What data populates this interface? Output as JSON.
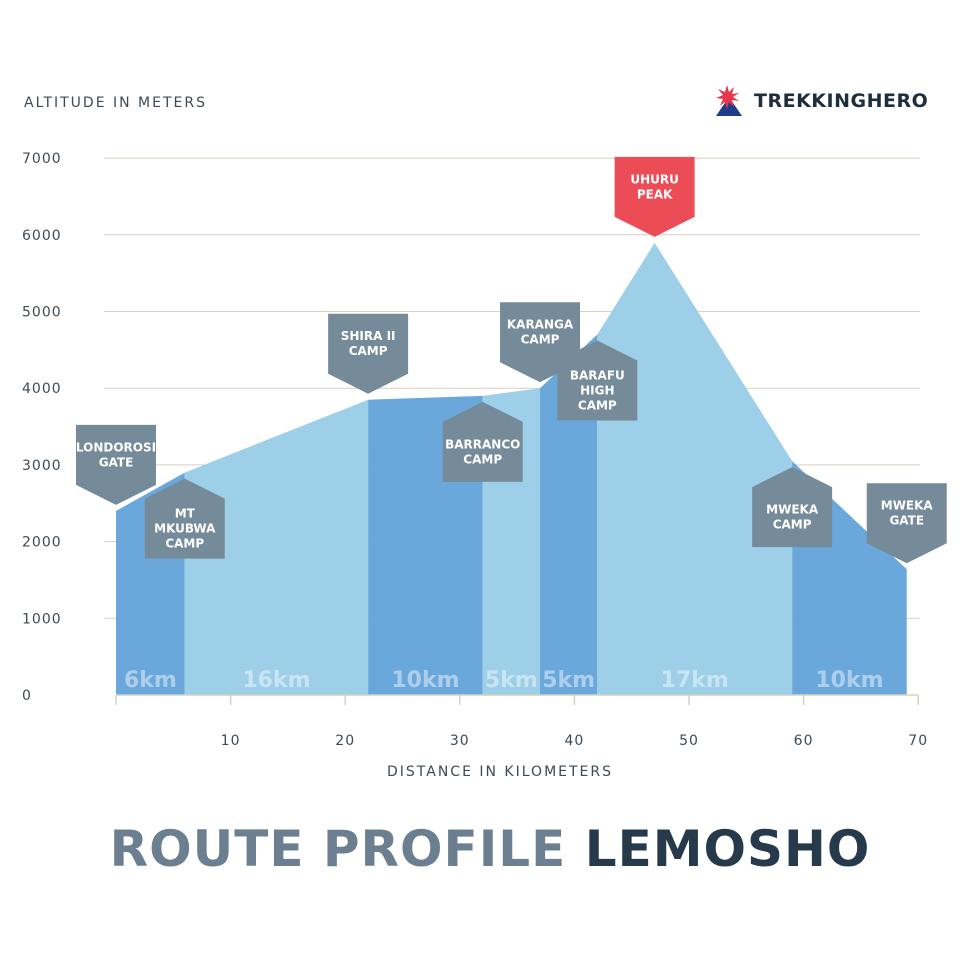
{
  "brand": {
    "name": "TREKKINGHERO",
    "logo_icon": "mountain-star-icon",
    "colors": {
      "star": "#e63950",
      "mountain": "#1f3b8a"
    }
  },
  "title": {
    "part1": "ROUTE PROFILE",
    "part2": "LEMOSHO"
  },
  "colors": {
    "dark_segment": "#6aa8dc",
    "light_segment": "#9dcfe9",
    "camp_marker": "#758b99",
    "summit_marker": "#ec4c56",
    "grid": "#d9cfc4",
    "title_light": "#6b7f90",
    "title_dark": "#263a4c"
  },
  "chart_data": {
    "type": "area",
    "ylabel": "ALTITUDE IN METERS",
    "xlabel": "DISTANCE IN KILOMETERS",
    "xlim": [
      0,
      70
    ],
    "ylim": [
      0,
      7000
    ],
    "x_ticks": [
      10,
      20,
      30,
      40,
      50,
      60,
      70
    ],
    "y_ticks": [
      0,
      1000,
      2000,
      3000,
      4000,
      5000,
      6000,
      7000
    ],
    "grid": true,
    "profile": [
      {
        "x": 0,
        "y": 2400
      },
      {
        "x": 6,
        "y": 2900
      },
      {
        "x": 22,
        "y": 3850
      },
      {
        "x": 32,
        "y": 3900
      },
      {
        "x": 37,
        "y": 4000
      },
      {
        "x": 42,
        "y": 4700
      },
      {
        "x": 47,
        "y": 5895
      },
      {
        "x": 59,
        "y": 3050
      },
      {
        "x": 69,
        "y": 1640
      }
    ],
    "segments": [
      {
        "label": "6km",
        "x0": 0,
        "x1": 6,
        "shade": "dark"
      },
      {
        "label": "16km",
        "x0": 6,
        "x1": 22,
        "shade": "light"
      },
      {
        "label": "10km",
        "x0": 22,
        "x1": 32,
        "shade": "dark"
      },
      {
        "label": "5km",
        "x0": 32,
        "x1": 37,
        "shade": "light"
      },
      {
        "label": "5km",
        "x0": 37,
        "x1": 42,
        "shade": "dark"
      },
      {
        "label": "17km",
        "x0": 42,
        "x1": 59,
        "shade": "light"
      },
      {
        "label": "10km",
        "x0": 59,
        "x1": 69,
        "shade": "dark"
      }
    ],
    "camps": [
      {
        "lines": [
          "LONDOROSI",
          "GATE"
        ],
        "x": 0,
        "y": 2400,
        "point": "down",
        "kind": "camp"
      },
      {
        "lines": [
          "MT",
          "MKUBWA",
          "CAMP"
        ],
        "x": 6,
        "y": 2900,
        "point": "up",
        "kind": "camp"
      },
      {
        "lines": [
          "SHIRA II",
          "CAMP"
        ],
        "x": 22,
        "y": 3850,
        "point": "down",
        "kind": "camp"
      },
      {
        "lines": [
          "BARRANCO",
          "CAMP"
        ],
        "x": 32,
        "y": 3900,
        "point": "up",
        "kind": "camp"
      },
      {
        "lines": [
          "KARANGA",
          "CAMP"
        ],
        "x": 37,
        "y": 4000,
        "point": "down",
        "kind": "camp"
      },
      {
        "lines": [
          "BARAFU",
          "HIGH",
          "CAMP"
        ],
        "x": 42,
        "y": 4700,
        "point": "up",
        "kind": "camp"
      },
      {
        "lines": [
          "UHURU",
          "PEAK"
        ],
        "x": 47,
        "y": 5895,
        "point": "down",
        "kind": "summit"
      },
      {
        "lines": [
          "MWEKA",
          "CAMP"
        ],
        "x": 59,
        "y": 3050,
        "point": "up",
        "kind": "camp"
      },
      {
        "lines": [
          "MWEKA",
          "GATE"
        ],
        "x": 69,
        "y": 1640,
        "point": "down",
        "kind": "camp"
      }
    ]
  }
}
